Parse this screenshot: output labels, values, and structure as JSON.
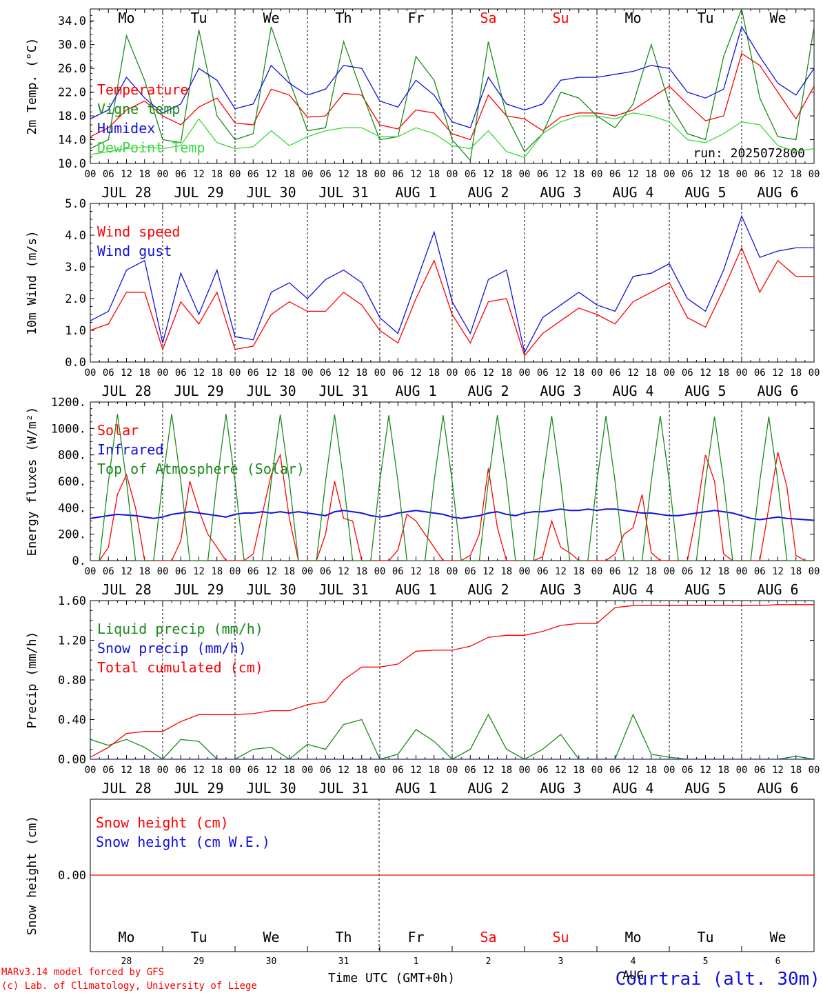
{
  "colors": {
    "red": "#ff0000",
    "green": "#1a8a1a",
    "blue": "#1010e0",
    "lightgreen": "#3cd83c",
    "black": "#000000"
  },
  "weekdays": [
    "Mo",
    "Tu",
    "We",
    "Th",
    "Fr",
    "Sa",
    "Su",
    "Mo",
    "Tu",
    "We"
  ],
  "weekday_colors": [
    "#000000",
    "#000000",
    "#000000",
    "#000000",
    "#000000",
    "#ff0000",
    "#ff0000",
    "#000000",
    "#000000",
    "#000000"
  ],
  "day_labels": [
    "JUL 28",
    "JUL 29",
    "JUL 30",
    "JUL 31",
    "AUG  1",
    "AUG  2",
    "AUG  3",
    "AUG  4",
    "AUG  5",
    "AUG  6"
  ],
  "hour_labels": [
    "00",
    "06",
    "12",
    "18"
  ],
  "hour_end_label": "00",
  "snow_day_numbers": [
    "28",
    "29",
    "30",
    "31",
    "1",
    "2",
    "3",
    "4",
    "5",
    "6"
  ],
  "snow_month_label": "AUG",
  "run_label": "run: 2025072800",
  "footer": {
    "credit_line1": "MARv3.14 model forced by GFS",
    "credit_line2": "(c) Lab. of Climatology, University of Liege",
    "xlabel": "Time UTC (GMT+0h)",
    "location": "Courtrai (alt. 30m)"
  },
  "chart_data": [
    {
      "type": "line",
      "ylabel": "2m Temp. (°C)",
      "ylim": [
        10,
        36
      ],
      "yticks": [
        "10.0",
        "14.0",
        "18.0",
        "22.0",
        "26.0",
        "30.0",
        "34.0"
      ],
      "x_hours": [
        0,
        6,
        12,
        18,
        24,
        30,
        36,
        42,
        48,
        54,
        60,
        66,
        72,
        78,
        84,
        90,
        96,
        102,
        108,
        114,
        120,
        126,
        132,
        138,
        144,
        150,
        156,
        162,
        168,
        174,
        180,
        186,
        192,
        198,
        204,
        210,
        216,
        222,
        228,
        234,
        240
      ],
      "series": [
        {
          "name": "Temperature",
          "color": "#ff0000",
          "values": [
            14.5,
            16.0,
            19.0,
            20.5,
            18.0,
            16.5,
            19.5,
            21.0,
            16.8,
            16.5,
            22.5,
            21.5,
            17.8,
            18.0,
            21.8,
            21.5,
            16.5,
            15.8,
            19.0,
            18.5,
            15.0,
            14.0,
            21.5,
            18.0,
            17.5,
            15.5,
            17.8,
            18.5,
            18.5,
            18.0,
            19.0,
            21.0,
            23.0,
            20.0,
            17.2,
            18.0,
            28.5,
            26.5,
            22.0,
            17.5,
            23.0
          ]
        },
        {
          "name": "Vigne temp",
          "color": "#1a8a1a",
          "values": [
            12.5,
            14.0,
            31.5,
            24.0,
            14.0,
            13.5,
            32.5,
            18.0,
            14.0,
            15.0,
            33.0,
            24.0,
            15.5,
            16.0,
            30.5,
            22.0,
            14.0,
            14.5,
            28.0,
            24.0,
            14.0,
            10.5,
            30.5,
            18.0,
            12.0,
            15.0,
            22.0,
            21.0,
            18.0,
            16.0,
            20.0,
            30.0,
            20.0,
            15.0,
            14.0,
            28.0,
            36.0,
            21.0,
            14.5,
            14.0,
            33.0
          ]
        },
        {
          "name": "Humidex",
          "color": "#1010e0",
          "values": [
            17.5,
            19.0,
            24.5,
            21.0,
            18.5,
            20.0,
            26.0,
            24.0,
            19.2,
            20.0,
            26.5,
            23.5,
            21.5,
            22.5,
            26.5,
            26.0,
            20.5,
            19.5,
            24.0,
            21.5,
            17.0,
            16.0,
            24.5,
            20.0,
            19.0,
            20.0,
            24.0,
            24.5,
            24.5,
            25.0,
            25.5,
            26.5,
            26.0,
            22.0,
            21.0,
            22.5,
            33.0,
            28.0,
            23.5,
            21.5,
            26.0
          ]
        },
        {
          "name": "DewPoint Temp",
          "color": "#3cd83c",
          "values": [
            11.5,
            12.0,
            12.5,
            12.8,
            12.5,
            13.0,
            17.5,
            13.5,
            12.5,
            12.8,
            15.5,
            13.0,
            14.5,
            15.5,
            16.0,
            16.0,
            14.5,
            14.5,
            16.0,
            15.0,
            13.0,
            12.5,
            15.5,
            12.0,
            11.0,
            15.0,
            17.0,
            18.0,
            18.0,
            17.5,
            18.5,
            18.0,
            17.0,
            14.0,
            13.5,
            15.0,
            17.0,
            16.5,
            13.0,
            12.0,
            12.5
          ]
        }
      ]
    },
    {
      "type": "line",
      "ylabel": "10m Wind (m/s)",
      "ylim": [
        0,
        5
      ],
      "yticks": [
        "0.0",
        "1.0",
        "2.0",
        "3.0",
        "4.0",
        "5.0"
      ],
      "x_hours": [
        0,
        6,
        12,
        18,
        24,
        30,
        36,
        42,
        48,
        54,
        60,
        66,
        72,
        78,
        84,
        90,
        96,
        102,
        108,
        114,
        120,
        126,
        132,
        138,
        144,
        150,
        156,
        162,
        168,
        174,
        180,
        186,
        192,
        198,
        204,
        210,
        216,
        222,
        228,
        234,
        240
      ],
      "series": [
        {
          "name": "Wind speed",
          "color": "#ff0000",
          "values": [
            1.0,
            1.2,
            2.2,
            2.2,
            0.4,
            1.9,
            1.2,
            2.2,
            0.4,
            0.5,
            1.5,
            1.9,
            1.6,
            1.6,
            2.2,
            1.8,
            1.0,
            0.6,
            2.0,
            3.2,
            1.5,
            0.6,
            1.9,
            2.0,
            0.2,
            0.9,
            1.3,
            1.7,
            1.5,
            1.2,
            1.9,
            2.2,
            2.5,
            1.4,
            1.1,
            2.3,
            3.6,
            2.2,
            3.2,
            2.7,
            2.7
          ]
        },
        {
          "name": "Wind gust",
          "color": "#1010e0",
          "values": [
            1.3,
            1.6,
            2.9,
            3.2,
            0.6,
            2.8,
            1.5,
            2.9,
            0.8,
            0.7,
            2.2,
            2.5,
            2.0,
            2.6,
            2.9,
            2.5,
            1.4,
            0.9,
            2.5,
            4.1,
            1.9,
            0.9,
            2.6,
            2.9,
            0.3,
            1.4,
            1.8,
            2.2,
            1.8,
            1.6,
            2.7,
            2.8,
            3.1,
            2.0,
            1.6,
            2.9,
            4.6,
            3.3,
            3.5,
            3.6,
            3.6
          ]
        }
      ]
    },
    {
      "type": "line",
      "ylabel": "Energy fluxes (W/m²)",
      "ylim": [
        0,
        1200
      ],
      "yticks": [
        "0.",
        "200.",
        "400.",
        "600.",
        "800.",
        "1000.",
        "1200."
      ],
      "x_hours": [
        0,
        3,
        6,
        9,
        12,
        15,
        18,
        21,
        24,
        27,
        30,
        33,
        36,
        39,
        42,
        45,
        48,
        51,
        54,
        57,
        60,
        63,
        66,
        69,
        72,
        75,
        78,
        81,
        84,
        87,
        90,
        93,
        96,
        99,
        102,
        105,
        108,
        111,
        114,
        117,
        120,
        123,
        126,
        129,
        132,
        135,
        138,
        141,
        144,
        147,
        150,
        153,
        156,
        159,
        162,
        165,
        168,
        171,
        174,
        177,
        180,
        183,
        186,
        189,
        192,
        195,
        198,
        201,
        204,
        207,
        210,
        213,
        216,
        219,
        222,
        225,
        228,
        231,
        234,
        237,
        240
      ],
      "series": [
        {
          "name": "Solar",
          "color": "#ff0000",
          "values": [
            0,
            0,
            100,
            500,
            650,
            400,
            0,
            0,
            0,
            0,
            150,
            600,
            380,
            200,
            100,
            0,
            0,
            0,
            50,
            350,
            650,
            800,
            320,
            0,
            0,
            0,
            200,
            600,
            320,
            300,
            0,
            0,
            0,
            0,
            80,
            350,
            300,
            200,
            100,
            0,
            0,
            0,
            40,
            200,
            700,
            250,
            0,
            0,
            0,
            0,
            30,
            300,
            100,
            60,
            0,
            0,
            0,
            0,
            50,
            200,
            250,
            500,
            60,
            0,
            0,
            0,
            0,
            350,
            800,
            600,
            50,
            0,
            0,
            0,
            0,
            400,
            820,
            560,
            40,
            0,
            0
          ]
        },
        {
          "name": "Infrared",
          "color": "#1010e0",
          "values": [
            320,
            330,
            340,
            350,
            345,
            340,
            330,
            320,
            330,
            350,
            360,
            370,
            360,
            350,
            340,
            330,
            350,
            360,
            360,
            370,
            360,
            370,
            360,
            370,
            360,
            350,
            340,
            370,
            380,
            370,
            360,
            340,
            330,
            340,
            360,
            370,
            380,
            370,
            360,
            350,
            330,
            320,
            330,
            340,
            360,
            370,
            350,
            340,
            360,
            370,
            370,
            380,
            390,
            380,
            380,
            390,
            380,
            390,
            390,
            380,
            370,
            360,
            360,
            350,
            340,
            340,
            350,
            360,
            370,
            380,
            370,
            360,
            340,
            320,
            310,
            320,
            330,
            320,
            315,
            310,
            305
          ]
        },
        {
          "name": "Top of Atmosphere (Solar)",
          "color": "#1a8a1a",
          "values": [
            0,
            0,
            600,
            1110,
            600,
            0,
            0,
            0,
            600,
            1110,
            600,
            0,
            0,
            0,
            600,
            1110,
            600,
            0,
            0,
            0,
            600,
            1105,
            600,
            0,
            0,
            0,
            600,
            1105,
            600,
            0,
            0,
            0,
            600,
            1100,
            600,
            0,
            0,
            0,
            600,
            1100,
            600,
            0,
            0,
            0,
            600,
            1100,
            600,
            0,
            0,
            0,
            600,
            1095,
            600,
            0,
            0,
            0,
            600,
            1095,
            600,
            0,
            0,
            0,
            600,
            1095,
            600,
            0,
            0,
            0,
            600,
            1090,
            600,
            0,
            0,
            0,
            600,
            1090,
            600,
            0,
            0,
            0,
            0
          ]
        }
      ]
    },
    {
      "type": "line",
      "ylabel": "Precip (mm/h)",
      "ylim": [
        0,
        1.6
      ],
      "yticks": [
        "0.00",
        "0.40",
        "0.80",
        "1.20",
        "1.60"
      ],
      "x_hours": [
        0,
        6,
        12,
        18,
        24,
        30,
        36,
        42,
        48,
        54,
        60,
        66,
        72,
        78,
        84,
        90,
        96,
        102,
        108,
        114,
        120,
        126,
        132,
        138,
        144,
        150,
        156,
        162,
        168,
        174,
        180,
        186,
        192,
        198,
        204,
        210,
        216,
        222,
        228,
        234,
        240
      ],
      "series": [
        {
          "name": "Liquid precip (mm/h)",
          "color": "#1a8a1a",
          "values": [
            0.2,
            0.14,
            0.2,
            0.12,
            0.0,
            0.2,
            0.18,
            0.0,
            0.0,
            0.1,
            0.12,
            0.0,
            0.15,
            0.1,
            0.35,
            0.4,
            0.0,
            0.05,
            0.3,
            0.18,
            0.0,
            0.1,
            0.45,
            0.1,
            0.0,
            0.1,
            0.25,
            0.0,
            0.0,
            0.0,
            0.45,
            0.05,
            0.02,
            0.0,
            0.0,
            0.0,
            0.0,
            0.0,
            0.0,
            0.03,
            0.0
          ]
        },
        {
          "name": "Snow precip (mm/h)",
          "color": "#1010e0",
          "values": [
            0,
            0,
            0,
            0,
            0,
            0,
            0,
            0,
            0,
            0,
            0,
            0,
            0,
            0,
            0,
            0,
            0,
            0,
            0,
            0,
            0,
            0,
            0,
            0,
            0,
            0,
            0,
            0,
            0,
            0,
            0,
            0,
            0,
            0,
            0,
            0,
            0,
            0,
            0,
            0,
            0
          ]
        },
        {
          "name": "Total cumulated (cm)",
          "color": "#ff0000",
          "values": [
            0.02,
            0.12,
            0.26,
            0.28,
            0.28,
            0.38,
            0.45,
            0.45,
            0.45,
            0.46,
            0.49,
            0.49,
            0.55,
            0.58,
            0.8,
            0.93,
            0.93,
            0.96,
            1.09,
            1.1,
            1.1,
            1.14,
            1.23,
            1.25,
            1.25,
            1.29,
            1.35,
            1.37,
            1.37,
            1.53,
            1.55,
            1.55,
            1.55,
            1.55,
            1.55,
            1.55,
            1.55,
            1.55,
            1.56,
            1.56,
            1.56
          ]
        }
      ]
    },
    {
      "type": "line",
      "ylabel": "Snow height (cm)",
      "yticks": [
        "0.00"
      ],
      "series": [
        {
          "name": "Snow height (cm)",
          "color": "#ff0000",
          "values": [
            0,
            0
          ]
        },
        {
          "name": "Snow height (cm W.E.)",
          "color": "#1010e0",
          "values": [
            0,
            0
          ]
        }
      ]
    }
  ]
}
